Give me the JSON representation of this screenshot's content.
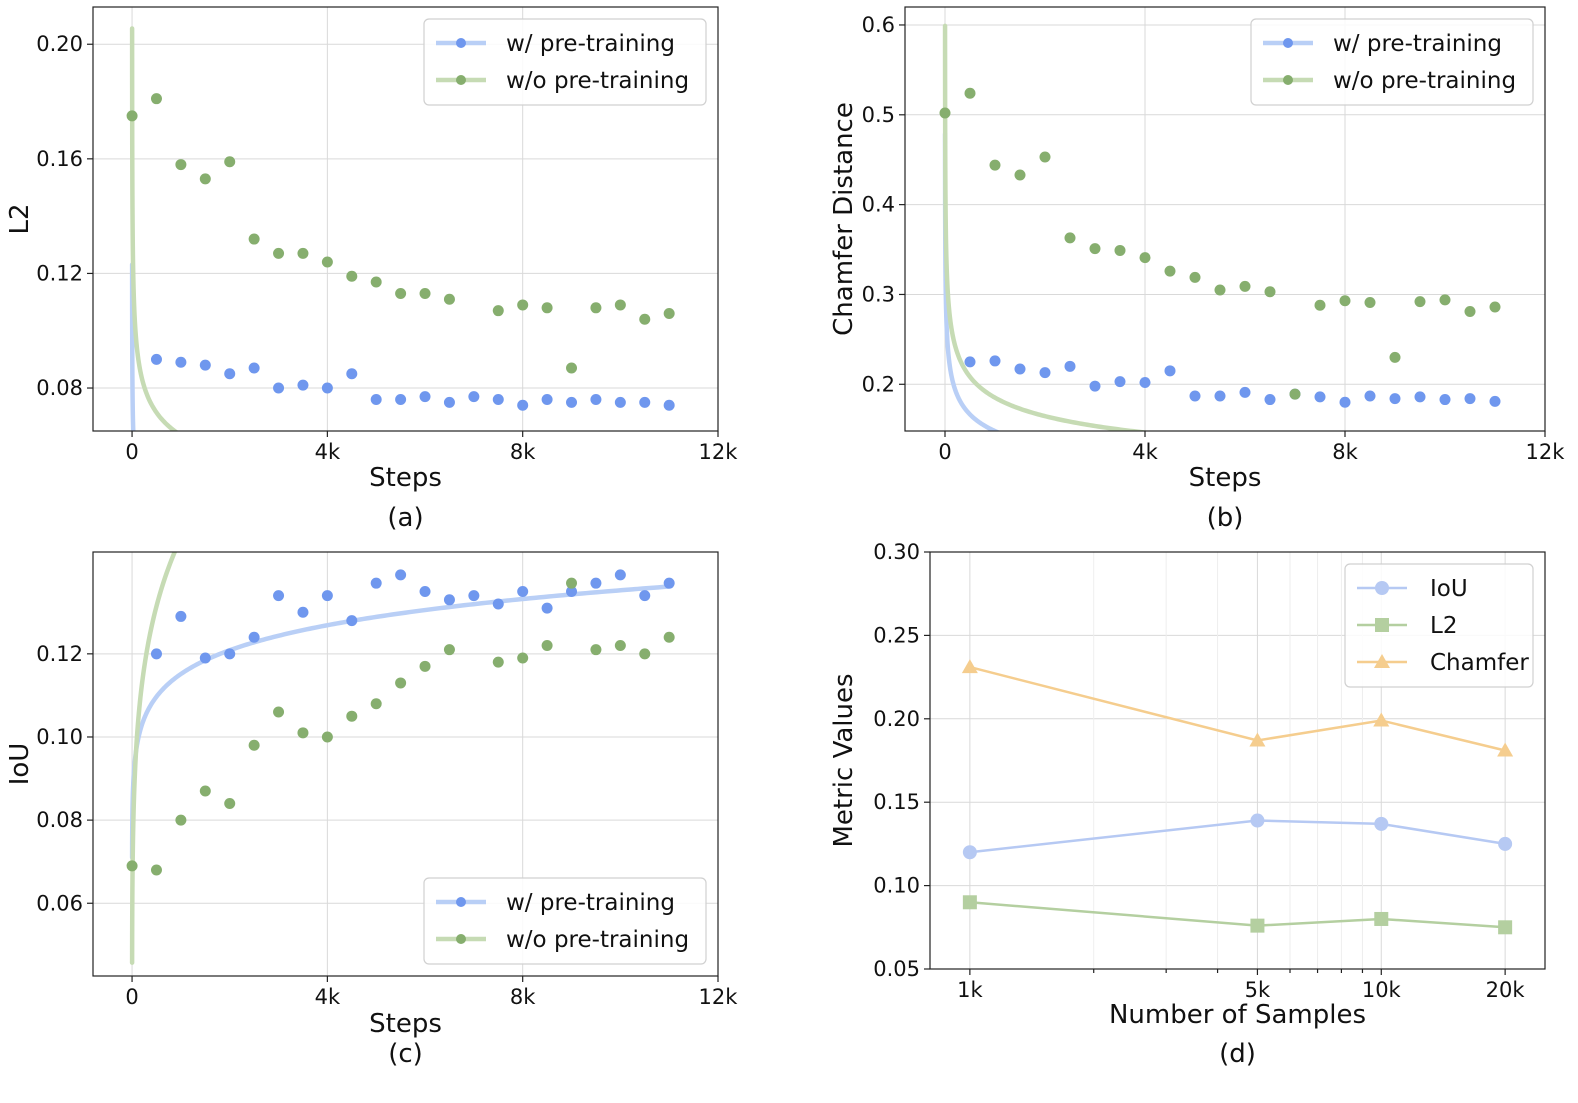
{
  "colors": {
    "blue_point": "#6f97ee",
    "blue_curve": "#b9cff6",
    "green_point": "#86ae6e",
    "green_curve": "#c6dbb4",
    "iou_line": "#b6c9f3",
    "l2_line": "#b4cfa0",
    "chamfer_line": "#f5cd8e"
  },
  "chart_data": [
    {
      "id": "a",
      "type": "scatter",
      "caption": "(a)",
      "xlabel": "Steps",
      "ylabel": "L2",
      "xlim": [
        -800,
        12000
      ],
      "ylim": [
        0.065,
        0.213
      ],
      "xticks": [
        0,
        4000,
        8000,
        12000
      ],
      "xtick_labels": [
        "0",
        "4k",
        "8k",
        "12k"
      ],
      "yticks": [
        0.08,
        0.12,
        0.16,
        0.2
      ],
      "ytick_labels": [
        "0.08",
        "0.12",
        "0.16",
        "0.20"
      ],
      "legend_position": "top-right",
      "series": [
        {
          "name": "w/ pre-training",
          "color_key": "blue",
          "x": [
            500,
            1000,
            1500,
            2000,
            2500,
            3000,
            3500,
            4000,
            4500,
            5000,
            5500,
            6000,
            6500,
            7000,
            7500,
            8000,
            8500,
            9000,
            9500,
            10000,
            10500,
            11000
          ],
          "y": [
            0.09,
            0.089,
            0.088,
            0.085,
            0.087,
            0.08,
            0.081,
            0.08,
            0.085,
            0.076,
            0.076,
            0.077,
            0.075,
            0.077,
            0.076,
            0.074,
            0.076,
            0.075,
            0.076,
            0.075,
            0.075,
            0.074
          ],
          "fit": {
            "a": 0.1231,
            "b": 0.2063,
            "power": 0.2,
            "x_start": 1
          }
        },
        {
          "name": "w/o pre-training",
          "color_key": "green",
          "x": [
            0,
            500,
            1000,
            1500,
            2000,
            2500,
            3000,
            3500,
            4000,
            4500,
            5000,
            5500,
            6000,
            6500,
            7500,
            8000,
            8500,
            9000,
            9500,
            10000,
            10500,
            11000
          ],
          "y": [
            0.175,
            0.181,
            0.158,
            0.153,
            0.159,
            0.132,
            0.127,
            0.127,
            0.124,
            0.119,
            0.117,
            0.113,
            0.113,
            0.111,
            0.107,
            0.109,
            0.108,
            0.087,
            0.108,
            0.109,
            0.104,
            0.106
          ],
          "fit": {
            "a": 0.2055,
            "b": 0.2063,
            "power": 0.17,
            "x_start": 1
          }
        }
      ]
    },
    {
      "id": "b",
      "type": "scatter",
      "caption": "(b)",
      "xlabel": "Steps",
      "ylabel": "Chamfer Distance",
      "xlim": [
        -800,
        12000
      ],
      "ylim": [
        0.148,
        0.62
      ],
      "xticks": [
        0,
        4000,
        8000,
        12000
      ],
      "xtick_labels": [
        "0",
        "4k",
        "8k",
        "12k"
      ],
      "yticks": [
        0.2,
        0.3,
        0.4,
        0.5,
        0.6
      ],
      "ytick_labels": [
        "0.2",
        "0.3",
        "0.4",
        "0.5",
        "0.6"
      ],
      "legend_position": "top-right",
      "series": [
        {
          "name": "w/ pre-training",
          "color_key": "blue",
          "x": [
            500,
            1000,
            1500,
            2000,
            2500,
            3000,
            3500,
            4000,
            4500,
            5000,
            5500,
            6000,
            6500,
            7000,
            7500,
            8000,
            8500,
            9000,
            9500,
            10000,
            10500,
            11000
          ],
          "y": [
            0.225,
            0.226,
            0.217,
            0.213,
            0.22,
            0.198,
            0.203,
            0.202,
            0.215,
            0.187,
            0.187,
            0.191,
            0.183,
            0.189,
            0.186,
            0.18,
            0.187,
            0.184,
            0.186,
            0.183,
            0.184,
            0.181
          ],
          "fit": {
            "a": 0.4786,
            "b": 0.2063,
            "power": 0.17,
            "x_start": 1
          }
        },
        {
          "name": "w/o pre-training",
          "color_key": "green",
          "x": [
            0,
            500,
            1000,
            1500,
            2000,
            2500,
            3000,
            3500,
            4000,
            4500,
            5000,
            5500,
            6000,
            6500,
            7000,
            7500,
            8000,
            8500,
            9000,
            9500,
            10000,
            10500,
            11000
          ],
          "y": [
            0.502,
            0.524,
            0.444,
            0.433,
            0.453,
            0.363,
            0.351,
            0.349,
            0.341,
            0.326,
            0.319,
            0.305,
            0.309,
            0.303,
            0.189,
            0.288,
            0.293,
            0.291,
            0.23,
            0.292,
            0.294,
            0.281,
            0.286
          ],
          "fit": {
            "a": 0.599,
            "b": 0.2063,
            "power": 0.17,
            "x_start": 1
          }
        }
      ]
    },
    {
      "id": "c",
      "type": "scatter",
      "caption": "(c)",
      "xlabel": "Steps",
      "ylabel": "IoU",
      "xlim": [
        -800,
        12000
      ],
      "ylim": [
        0.0425,
        0.1445
      ],
      "xticks": [
        0,
        4000,
        8000,
        12000
      ],
      "xtick_labels": [
        "0",
        "4k",
        "8k",
        "12k"
      ],
      "yticks": [
        0.06,
        0.08,
        0.1,
        0.12
      ],
      "ytick_labels": [
        "0.06",
        "0.08",
        "0.10",
        "0.12"
      ],
      "legend_position": "bottom-right",
      "series": [
        {
          "name": "w/ pre-training",
          "color_key": "blue",
          "x": [
            500,
            1000,
            1500,
            2000,
            2500,
            3000,
            3500,
            4000,
            4500,
            5000,
            5500,
            6000,
            6500,
            7000,
            7500,
            8000,
            8500,
            9000,
            9500,
            10000,
            10500,
            11000
          ],
          "y": [
            0.12,
            0.129,
            0.119,
            0.12,
            0.124,
            0.134,
            0.13,
            0.134,
            0.128,
            0.137,
            0.139,
            0.135,
            0.133,
            0.134,
            0.132,
            0.135,
            0.131,
            0.135,
            0.137,
            0.139,
            0.134,
            0.137
          ],
          "fit": {
            "a": 0.071,
            "b": 0.938,
            "power": 0.07,
            "x_start": 1
          }
        },
        {
          "name": "w/o pre-training",
          "color_key": "green",
          "x": [
            0,
            500,
            1000,
            1500,
            2000,
            2500,
            3000,
            3500,
            4000,
            4500,
            5000,
            5500,
            6000,
            6500,
            7500,
            8000,
            8500,
            9500,
            9000,
            10000,
            10500,
            11000
          ],
          "y": [
            0.069,
            0.068,
            0.08,
            0.087,
            0.084,
            0.098,
            0.106,
            0.101,
            0.1,
            0.105,
            0.108,
            0.113,
            0.117,
            0.121,
            0.118,
            0.119,
            0.122,
            0.121,
            0.137,
            0.122,
            0.12,
            0.124
          ],
          "fit": {
            "a": 0.0457,
            "b": 0.938,
            "power": 0.17,
            "x_start": 1
          }
        }
      ]
    },
    {
      "id": "d",
      "type": "line",
      "caption": "(d)",
      "xlabel": "Number of Samples",
      "ylabel": "Metric Values",
      "xscale": "log",
      "xlim": [
        800,
        25000
      ],
      "ylim": [
        0.05,
        0.3
      ],
      "xticks": [
        1000,
        5000,
        10000,
        20000
      ],
      "xtick_labels": [
        "1k",
        "5k",
        "10k",
        "20k"
      ],
      "yticks": [
        0.05,
        0.1,
        0.15,
        0.2,
        0.25,
        0.3
      ],
      "ytick_labels": [
        "0.05",
        "0.10",
        "0.15",
        "0.20",
        "0.25",
        "0.30"
      ],
      "legend_position": "top-right",
      "series": [
        {
          "name": "IoU",
          "marker": "circle",
          "color_key": "iou",
          "x": [
            1000,
            5000,
            10000,
            20000
          ],
          "y": [
            0.12,
            0.139,
            0.137,
            0.125
          ]
        },
        {
          "name": "L2",
          "marker": "square",
          "color_key": "l2",
          "x": [
            1000,
            5000,
            10000,
            20000
          ],
          "y": [
            0.09,
            0.076,
            0.08,
            0.075
          ]
        },
        {
          "name": "Chamfer",
          "marker": "triangle",
          "color_key": "chamfer",
          "x": [
            1000,
            5000,
            10000,
            20000
          ],
          "y": [
            0.231,
            0.187,
            0.199,
            0.181
          ]
        }
      ]
    }
  ]
}
